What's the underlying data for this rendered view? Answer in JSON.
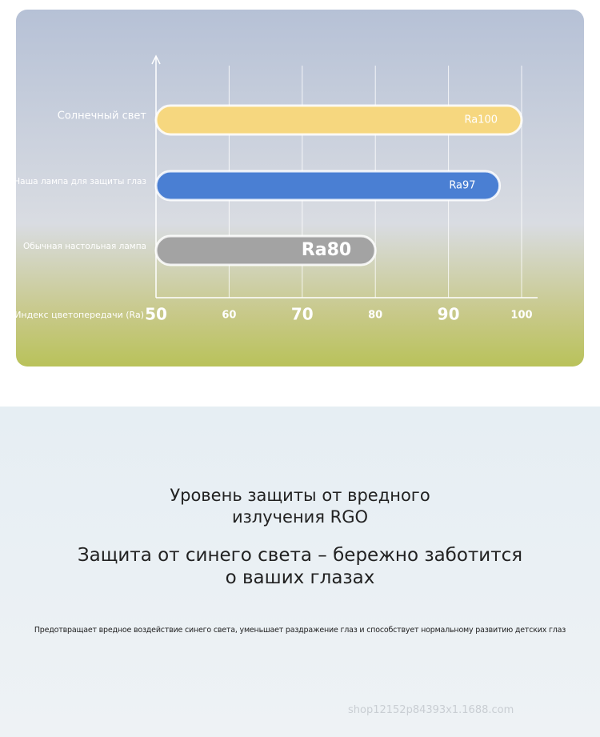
{
  "chart_data": {
    "type": "bar",
    "orientation": "horizontal",
    "categories": [
      "Солнечный свет",
      "Наша лампа для защиты глаз",
      "Обычная настольная лампа"
    ],
    "values": [
      100,
      97,
      80
    ],
    "value_labels": [
      "Ra100",
      "Ra97",
      "Ra80"
    ],
    "colors": [
      "#f6d77f",
      "#4a7fd3",
      "#a3a3a3"
    ],
    "xlabel": "Индекс цветопередачи (Ra)",
    "xlim": [
      50,
      100
    ],
    "xticks": [
      50,
      60,
      70,
      80,
      90,
      100
    ],
    "grid": true
  },
  "section": {
    "title_lines": [
      "Уровень защиты от вредного",
      "излучения RGO"
    ],
    "subtitle_lines": [
      "Защита от синего света – бережно заботится",
      "о ваших глазах"
    ],
    "description": "Предотвращает вредное воздействие синего света, уменьшает раздражение глаз и способствует нормальному развитию детских глаз",
    "watermark": "shop12152p84393x1.1688.com"
  }
}
